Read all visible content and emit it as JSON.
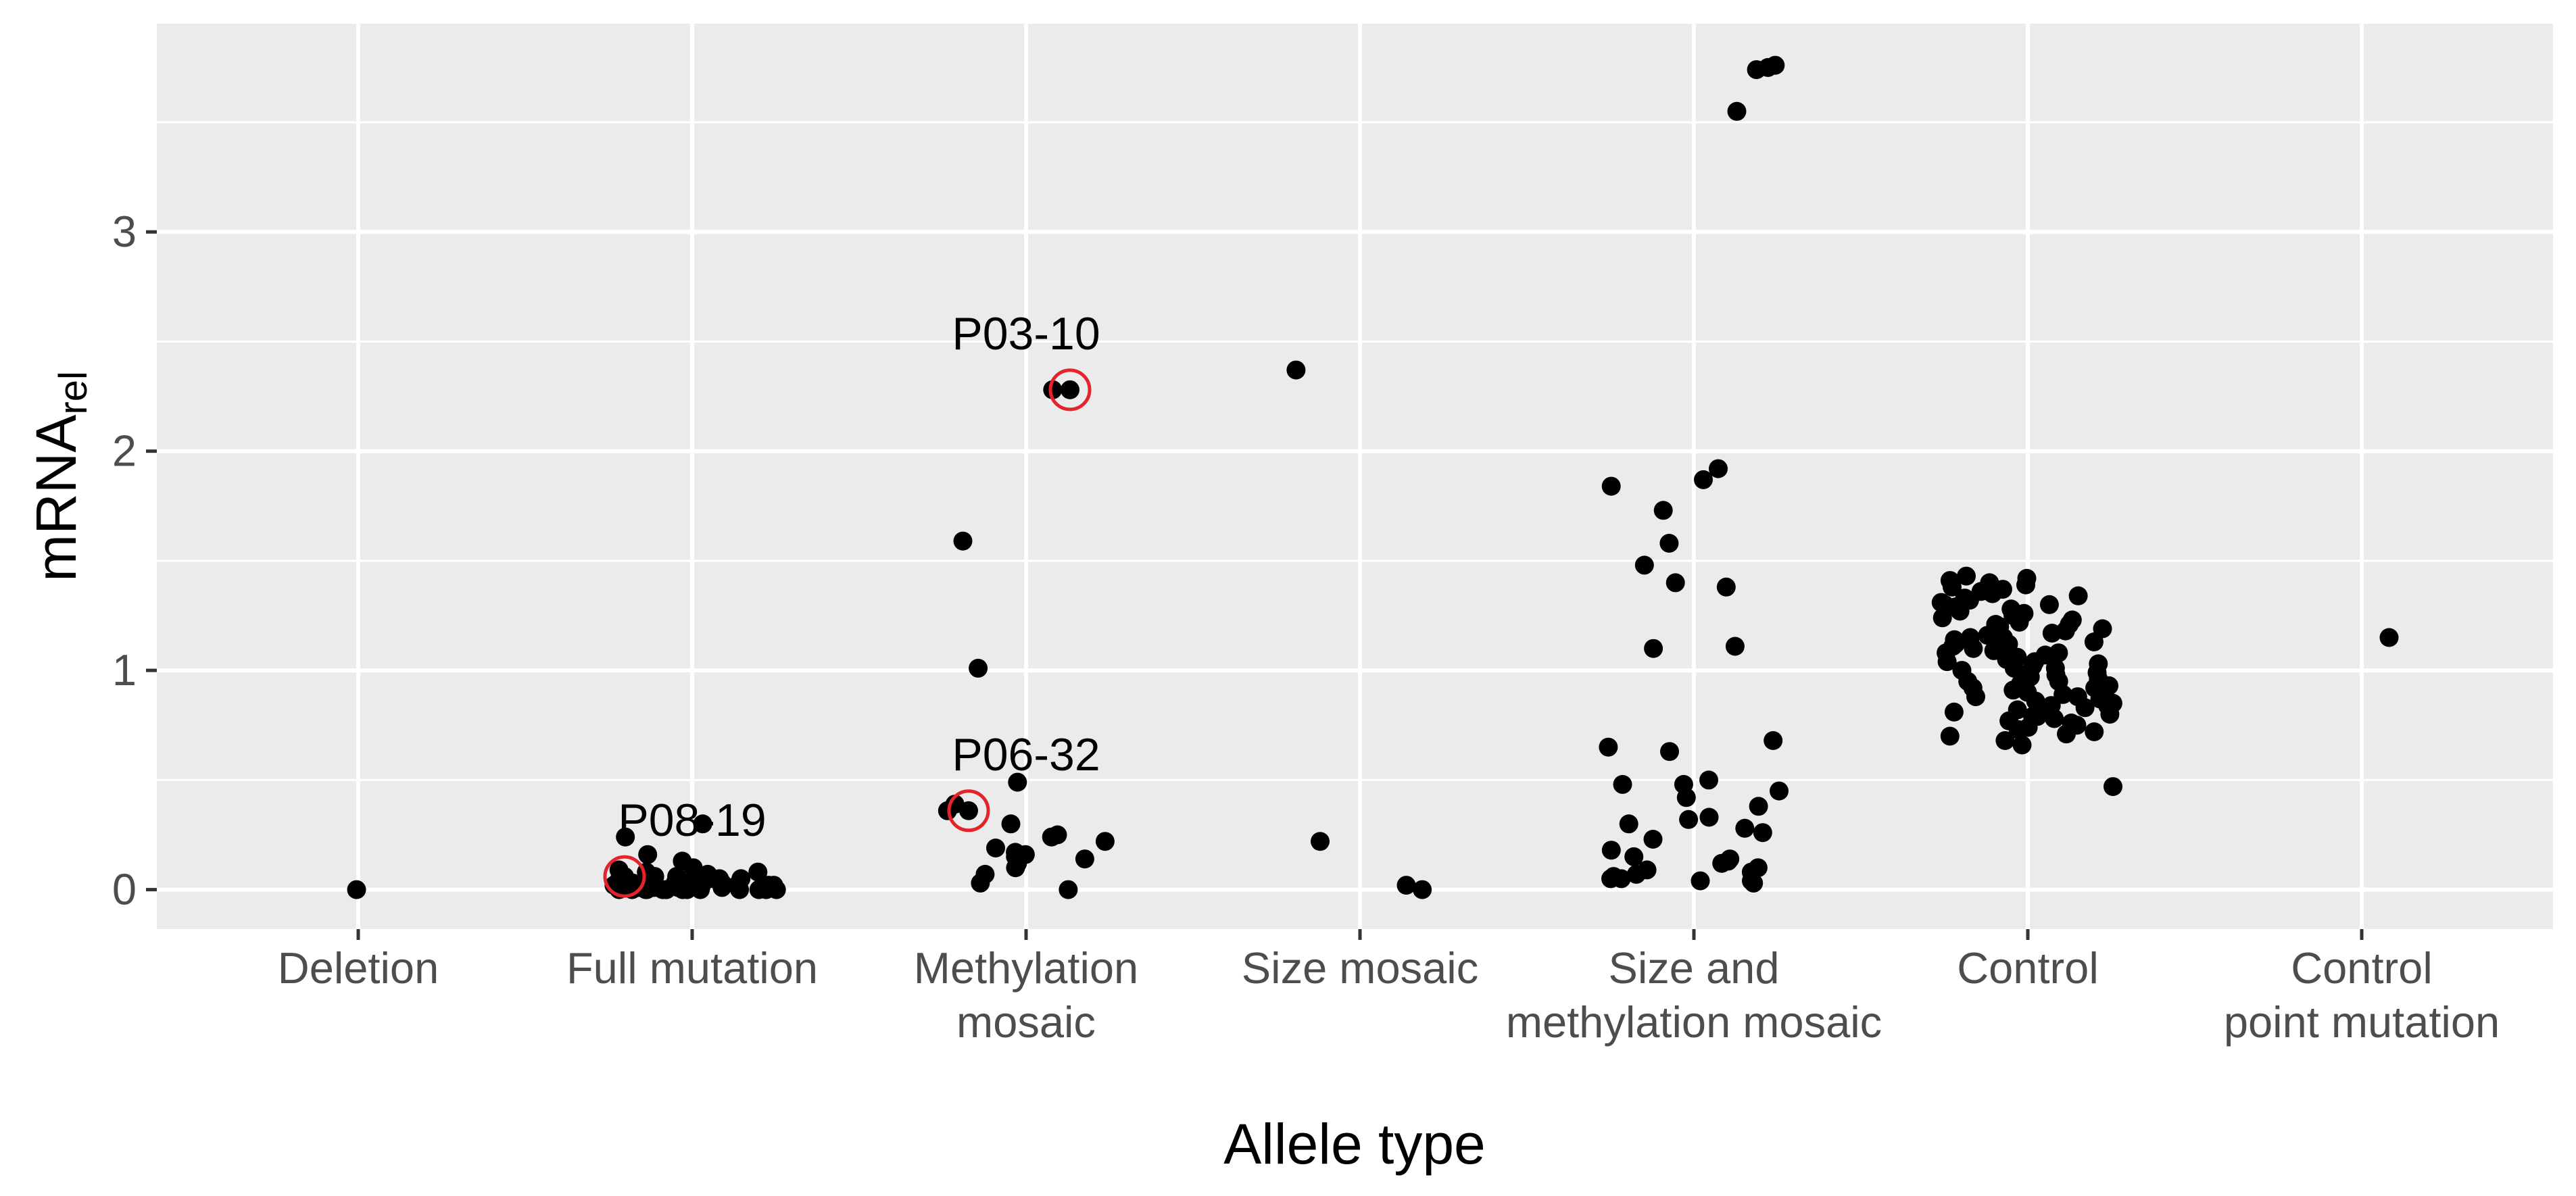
{
  "chart_data": {
    "type": "scatter",
    "title": "",
    "xlabel": "Allele type",
    "ylabel": "mRNA",
    "ylabel_subscript": "rel",
    "ylim": [
      -0.18,
      3.95
    ],
    "yticks": [
      0,
      1,
      2,
      3
    ],
    "grid": true,
    "legend": "none",
    "colors": {
      "panel": "#ebebeb",
      "grid": "#ffffff",
      "point": "#000000",
      "highlight": "#e3242b",
      "tick_text": "#4d4d4d"
    },
    "categories": [
      {
        "label_lines": [
          "Deletion"
        ]
      },
      {
        "label_lines": [
          "Full mutation"
        ]
      },
      {
        "label_lines": [
          "Methylation",
          "mosaic"
        ]
      },
      {
        "label_lines": [
          "Size mosaic"
        ]
      },
      {
        "label_lines": [
          "Size and",
          "methylation mosaic"
        ]
      },
      {
        "label_lines": [
          "Control"
        ]
      },
      {
        "label_lines": [
          "Control",
          "point mutation"
        ]
      }
    ],
    "points": [
      [
        1,
        0
      ],
      [
        2,
        0.3
      ],
      [
        2,
        0.24
      ],
      [
        2,
        0.16
      ],
      [
        2,
        0.13
      ],
      [
        2,
        0.1
      ],
      [
        2,
        0.09
      ],
      [
        2,
        0.08
      ],
      [
        2,
        0.07
      ],
      [
        2,
        0.06
      ],
      [
        2,
        0.06
      ],
      [
        2,
        0.05
      ],
      [
        2,
        0.05
      ],
      [
        2,
        0.04
      ],
      [
        2,
        0.04
      ],
      [
        2,
        0.04
      ],
      [
        2,
        0.03
      ],
      [
        2,
        0.03
      ],
      [
        2,
        0.03
      ],
      [
        2,
        0.03
      ],
      [
        2,
        0.02
      ],
      [
        2,
        0.02
      ],
      [
        2,
        0.02
      ],
      [
        2,
        0.02
      ],
      [
        2,
        0.02
      ],
      [
        2,
        0.01
      ],
      [
        2,
        0.01
      ],
      [
        2,
        0.01
      ],
      [
        2,
        0.01
      ],
      [
        2,
        0.01
      ],
      [
        2,
        0.01
      ],
      [
        2,
        0.01
      ],
      [
        2,
        0.01
      ],
      [
        2,
        0.0
      ],
      [
        2,
        0.0
      ],
      [
        2,
        0.0
      ],
      [
        2,
        0.0
      ],
      [
        2,
        0.0
      ],
      [
        2,
        0.0
      ],
      [
        2,
        0.0
      ],
      [
        2,
        0.0
      ],
      [
        2,
        0.0
      ],
      [
        2,
        0.0
      ],
      [
        2,
        0.0
      ],
      [
        2,
        0.0
      ],
      [
        2,
        0.0
      ],
      [
        2,
        0.0
      ],
      [
        2,
        0.08
      ],
      [
        2,
        0.05
      ],
      [
        2,
        0.03
      ],
      [
        2,
        0.02
      ],
      [
        3,
        2.28
      ],
      [
        3,
        1.59
      ],
      [
        3,
        1.01
      ],
      [
        3,
        0.49
      ],
      [
        3,
        0.39
      ],
      [
        3,
        0.36
      ],
      [
        3,
        0.3
      ],
      [
        3,
        0.25
      ],
      [
        3,
        0.24
      ],
      [
        3,
        0.22
      ],
      [
        3,
        0.19
      ],
      [
        3,
        0.17
      ],
      [
        3,
        0.16
      ],
      [
        3,
        0.15
      ],
      [
        3,
        0.14
      ],
      [
        3,
        0.12
      ],
      [
        3,
        0.1
      ],
      [
        3,
        0.07
      ],
      [
        3,
        0.03
      ],
      [
        3,
        0.0
      ],
      [
        4,
        2.37
      ],
      [
        4,
        0.22
      ],
      [
        4,
        0.02
      ],
      [
        4,
        0.0
      ],
      [
        5,
        3.76
      ],
      [
        5,
        3.75
      ],
      [
        5,
        3.74
      ],
      [
        5,
        3.55
      ],
      [
        5,
        1.92
      ],
      [
        5,
        1.87
      ],
      [
        5,
        1.84
      ],
      [
        5,
        1.73
      ],
      [
        5,
        1.58
      ],
      [
        5,
        1.48
      ],
      [
        5,
        1.4
      ],
      [
        5,
        1.38
      ],
      [
        5,
        1.11
      ],
      [
        5,
        1.1
      ],
      [
        5,
        0.68
      ],
      [
        5,
        0.65
      ],
      [
        5,
        0.63
      ],
      [
        5,
        0.5
      ],
      [
        5,
        0.48
      ],
      [
        5,
        0.48
      ],
      [
        5,
        0.45
      ],
      [
        5,
        0.42
      ],
      [
        5,
        0.38
      ],
      [
        5,
        0.33
      ],
      [
        5,
        0.32
      ],
      [
        5,
        0.3
      ],
      [
        5,
        0.28
      ],
      [
        5,
        0.26
      ],
      [
        5,
        0.23
      ],
      [
        5,
        0.18
      ],
      [
        5,
        0.15
      ],
      [
        5,
        0.14
      ],
      [
        5,
        0.13
      ],
      [
        5,
        0.12
      ],
      [
        5,
        0.1
      ],
      [
        5,
        0.09
      ],
      [
        5,
        0.08
      ],
      [
        5,
        0.07
      ],
      [
        5,
        0.06
      ],
      [
        5,
        0.05
      ],
      [
        5,
        0.05
      ],
      [
        5,
        0.04
      ],
      [
        5,
        0.04
      ],
      [
        5,
        0.03
      ],
      [
        6,
        1.43
      ],
      [
        6,
        1.42
      ],
      [
        6,
        1.41
      ],
      [
        6,
        1.4
      ],
      [
        6,
        1.39
      ],
      [
        6,
        1.38
      ],
      [
        6,
        1.37
      ],
      [
        6,
        1.36
      ],
      [
        6,
        1.35
      ],
      [
        6,
        1.34
      ],
      [
        6,
        1.33
      ],
      [
        6,
        1.32
      ],
      [
        6,
        1.31
      ],
      [
        6,
        1.3
      ],
      [
        6,
        1.29
      ],
      [
        6,
        1.28
      ],
      [
        6,
        1.27
      ],
      [
        6,
        1.26
      ],
      [
        6,
        1.25
      ],
      [
        6,
        1.24
      ],
      [
        6,
        1.23
      ],
      [
        6,
        1.22
      ],
      [
        6,
        1.21
      ],
      [
        6,
        1.2
      ],
      [
        6,
        1.19
      ],
      [
        6,
        1.18
      ],
      [
        6,
        1.17
      ],
      [
        6,
        1.16
      ],
      [
        6,
        1.15
      ],
      [
        6,
        1.14
      ],
      [
        6,
        1.13
      ],
      [
        6,
        1.12
      ],
      [
        6,
        1.11
      ],
      [
        6,
        1.1
      ],
      [
        6,
        1.09
      ],
      [
        6,
        1.08
      ],
      [
        6,
        1.07
      ],
      [
        6,
        1.06
      ],
      [
        6,
        1.05
      ],
      [
        6,
        1.04
      ],
      [
        6,
        1.03
      ],
      [
        6,
        1.02
      ],
      [
        6,
        1.01
      ],
      [
        6,
        1.0
      ],
      [
        6,
        0.99
      ],
      [
        6,
        0.98
      ],
      [
        6,
        0.97
      ],
      [
        6,
        0.96
      ],
      [
        6,
        0.95
      ],
      [
        6,
        0.94
      ],
      [
        6,
        0.93
      ],
      [
        6,
        0.92
      ],
      [
        6,
        0.91
      ],
      [
        6,
        0.9
      ],
      [
        6,
        0.89
      ],
      [
        6,
        0.88
      ],
      [
        6,
        0.87
      ],
      [
        6,
        0.86
      ],
      [
        6,
        0.85
      ],
      [
        6,
        0.84
      ],
      [
        6,
        0.83
      ],
      [
        6,
        0.82
      ],
      [
        6,
        0.81
      ],
      [
        6,
        0.8
      ],
      [
        6,
        0.79
      ],
      [
        6,
        0.78
      ],
      [
        6,
        0.77
      ],
      [
        6,
        0.76
      ],
      [
        6,
        0.75
      ],
      [
        6,
        0.74
      ],
      [
        6,
        0.73
      ],
      [
        6,
        0.72
      ],
      [
        6,
        0.71
      ],
      [
        6,
        0.7
      ],
      [
        6,
        0.68
      ],
      [
        6,
        0.66
      ],
      [
        6,
        0.47
      ],
      [
        6,
        1.01
      ],
      [
        6,
        0.95
      ],
      [
        6,
        1.08
      ],
      [
        6,
        1.15
      ],
      [
        6,
        0.88
      ],
      [
        6,
        0.79
      ],
      [
        6,
        1.21
      ],
      [
        6,
        1.3
      ],
      [
        6,
        0.84
      ],
      [
        6,
        0.97
      ],
      [
        6,
        1.04
      ],
      [
        6,
        1.12
      ],
      [
        6,
        0.92
      ],
      [
        7,
        1.15
      ]
    ],
    "highlighted": [
      {
        "label": "P08-19",
        "category": 2,
        "value": 0.06
      },
      {
        "label": "P03-10",
        "category": 3,
        "value": 2.28
      },
      {
        "label": "P06-32",
        "category": 3,
        "value": 0.36
      }
    ]
  }
}
